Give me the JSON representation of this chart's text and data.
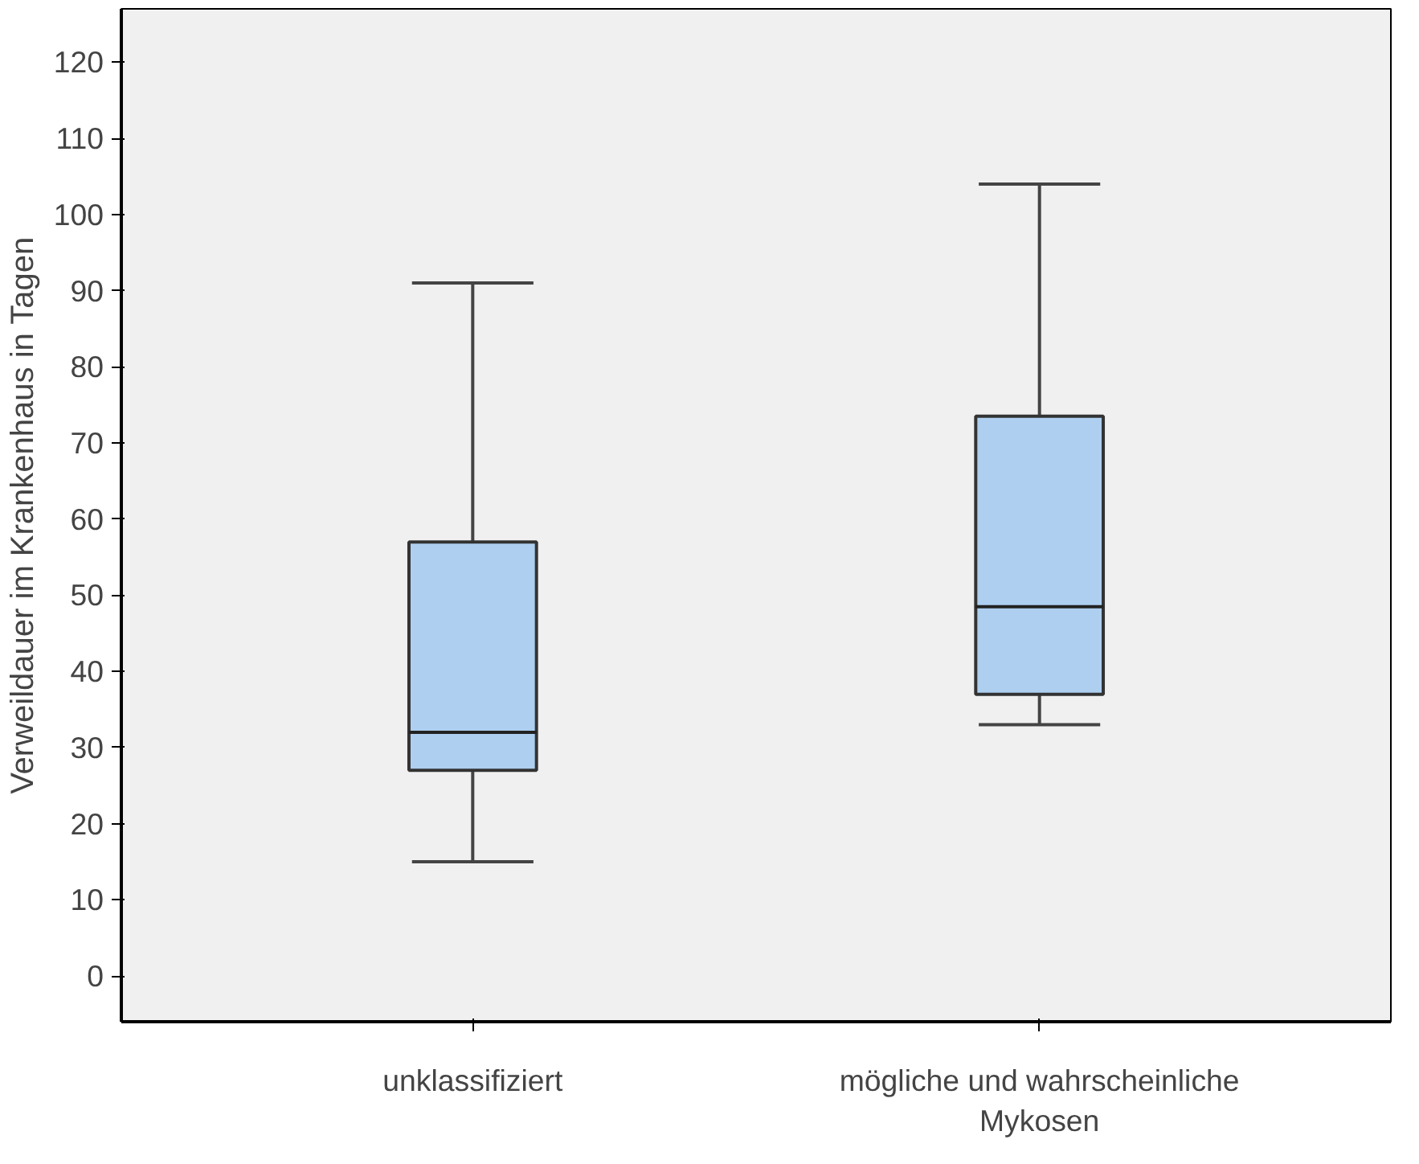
{
  "chart_data": {
    "type": "box",
    "ylabel": "Verweildauer im Krankenhaus in Tagen",
    "categories": [
      "unklassifiziert",
      "mögliche und wahrscheinliche\nMykosen"
    ],
    "boxes": [
      {
        "low": 15,
        "q1": 27,
        "median": 32,
        "q3": 57,
        "high": 91
      },
      {
        "low": 33,
        "q1": 37,
        "median": 48.5,
        "q3": 73.5,
        "high": 104
      }
    ],
    "color": "#aecff0",
    "ylim": [
      -6,
      127
    ],
    "yticks": [
      0,
      10,
      20,
      30,
      40,
      50,
      60,
      70,
      80,
      90,
      100,
      110,
      120
    ],
    "grid": false
  }
}
